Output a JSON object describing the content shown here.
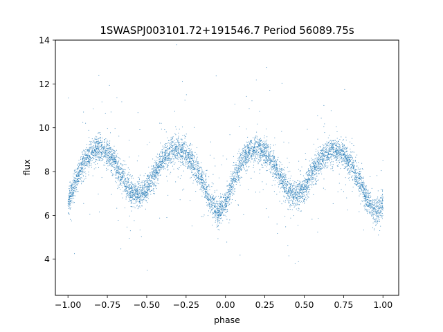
{
  "chart_data": {
    "type": "scatter",
    "title": "1SWASPJ003101.72+191546.7 Period 56089.75s",
    "xlabel": "phase",
    "ylabel": "flux",
    "xlim": [
      -1.08,
      1.1
    ],
    "ylim": [
      2.35,
      14
    ],
    "xticks": [
      -1.0,
      -0.75,
      -0.5,
      -0.25,
      0.0,
      0.25,
      0.5,
      0.75,
      1.0
    ],
    "xtick_labels": [
      "−1.00",
      "−0.75",
      "−0.50",
      "−0.25",
      "0.00",
      "0.25",
      "0.50",
      "0.75",
      "1.00"
    ],
    "yticks": [
      4,
      6,
      8,
      10,
      12,
      14
    ],
    "ytick_labels": [
      "4",
      "6",
      "8",
      "10",
      "12",
      "14"
    ],
    "grid": false,
    "legend": "none",
    "marker_color": "#1f77b4",
    "series": [
      {
        "phase_range": [
          -1.0,
          1.0
        ],
        "points": [
          [
            -1.0,
            6.5
          ],
          [
            -0.95,
            7.6
          ],
          [
            -0.9,
            8.4
          ],
          [
            -0.85,
            8.9
          ],
          [
            -0.8,
            9.1
          ],
          [
            -0.75,
            8.9
          ],
          [
            -0.7,
            8.4
          ],
          [
            -0.65,
            7.7
          ],
          [
            -0.6,
            7.1
          ],
          [
            -0.55,
            6.9
          ],
          [
            -0.5,
            7.2
          ],
          [
            -0.45,
            7.9
          ],
          [
            -0.4,
            8.5
          ],
          [
            -0.35,
            8.9
          ],
          [
            -0.3,
            9.0
          ],
          [
            -0.25,
            8.8
          ],
          [
            -0.2,
            8.3
          ],
          [
            -0.15,
            7.6
          ],
          [
            -0.1,
            6.7
          ],
          [
            -0.05,
            6.1
          ],
          [
            0.0,
            6.5
          ],
          [
            0.05,
            7.6
          ],
          [
            0.1,
            8.4
          ],
          [
            0.15,
            8.9
          ],
          [
            0.2,
            9.1
          ],
          [
            0.25,
            8.9
          ],
          [
            0.3,
            8.4
          ],
          [
            0.35,
            7.7
          ],
          [
            0.4,
            7.1
          ],
          [
            0.45,
            6.9
          ],
          [
            0.5,
            7.2
          ],
          [
            0.55,
            7.9
          ],
          [
            0.6,
            8.5
          ],
          [
            0.65,
            8.9
          ],
          [
            0.7,
            9.0
          ],
          [
            0.75,
            8.8
          ],
          [
            0.8,
            8.3
          ],
          [
            0.85,
            7.6
          ],
          [
            0.9,
            6.7
          ],
          [
            0.95,
            6.1
          ],
          [
            1.0,
            6.5
          ]
        ]
      }
    ]
  }
}
